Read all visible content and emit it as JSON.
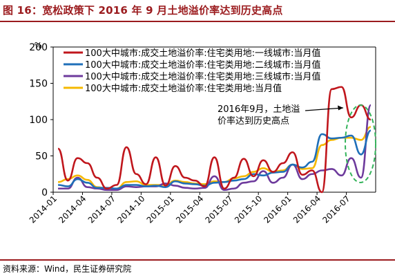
{
  "figure": {
    "title": "图 16：宽松政策下 2016 年 9 月土地溢价率达到历史高点",
    "source": "资料来源：Wind，民生证券研究院"
  },
  "colors": {
    "accent": "#9b1b1e",
    "series": [
      "#c0161c",
      "#1f6fb8",
      "#6d3a9c",
      "#f5b800"
    ],
    "annotation_ellipse": "#33b35a"
  },
  "chart_data": {
    "type": "line",
    "ylabel": "%",
    "ylim": [
      0,
      200
    ],
    "yticks": [
      0,
      50,
      100,
      150,
      200
    ],
    "xtick_labels": [
      "2014-01",
      "2014-04",
      "2014-07",
      "2014-10",
      "2015-01",
      "2015-04",
      "2015-07",
      "2015-10",
      "2016-01",
      "2016-04",
      "2016-07"
    ],
    "x": [
      "2014-01",
      "2014-02",
      "2014-03",
      "2014-04",
      "2014-05",
      "2014-06",
      "2014-07",
      "2014-08",
      "2014-09",
      "2014-10",
      "2014-11",
      "2014-12",
      "2015-01",
      "2015-02",
      "2015-03",
      "2015-04",
      "2015-05",
      "2015-06",
      "2015-07",
      "2015-08",
      "2015-09",
      "2015-10",
      "2015-11",
      "2015-12",
      "2016-01",
      "2016-02",
      "2016-03",
      "2016-04",
      "2016-05",
      "2016-06",
      "2016-07",
      "2016-08",
      "2016-09"
    ],
    "legend_position": "top-left",
    "series": [
      {
        "name": "100大中城市:成交土地溢价率:住宅类用地:一线城市:当月值",
        "values": [
          60,
          16,
          47,
          40,
          20,
          5,
          10,
          62,
          25,
          11,
          48,
          9,
          36,
          20,
          16,
          8,
          48,
          5,
          20,
          46,
          22,
          44,
          28,
          40,
          55,
          24,
          30,
          0,
          142,
          145,
          103,
          120,
          100
        ]
      },
      {
        "name": "100大中城市:成交土地溢价率:住宅类用地:二线城市:当月值",
        "values": [
          10,
          8,
          18,
          13,
          6,
          6,
          5,
          10,
          10,
          8,
          9,
          7,
          15,
          12,
          11,
          9,
          13,
          14,
          16,
          18,
          25,
          23,
          27,
          28,
          38,
          34,
          42,
          80,
          74,
          75,
          78,
          52,
          85
        ]
      },
      {
        "name": "100大中城市:成交土地溢价率:住宅类用地:三线城市:当月值",
        "values": [
          5,
          5,
          20,
          7,
          5,
          3,
          3,
          8,
          7,
          8,
          8,
          12,
          9,
          6,
          5,
          6,
          22,
          3,
          5,
          13,
          15,
          29,
          13,
          20,
          38,
          18,
          25,
          30,
          32,
          23,
          47,
          20,
          120
        ]
      },
      {
        "name": "100大中城市:成交土地溢价率:住宅类用地:当月值",
        "values": [
          14,
          18,
          23,
          17,
          7,
          5,
          5,
          14,
          15,
          10,
          10,
          10,
          16,
          14,
          12,
          11,
          15,
          14,
          19,
          22,
          28,
          33,
          28,
          30,
          38,
          32,
          33,
          65,
          72,
          75,
          75,
          72,
          90
        ]
      }
    ],
    "annotation": {
      "text_line1": "2016年9月，土地溢",
      "text_line2": "价率达到历史高点"
    }
  }
}
